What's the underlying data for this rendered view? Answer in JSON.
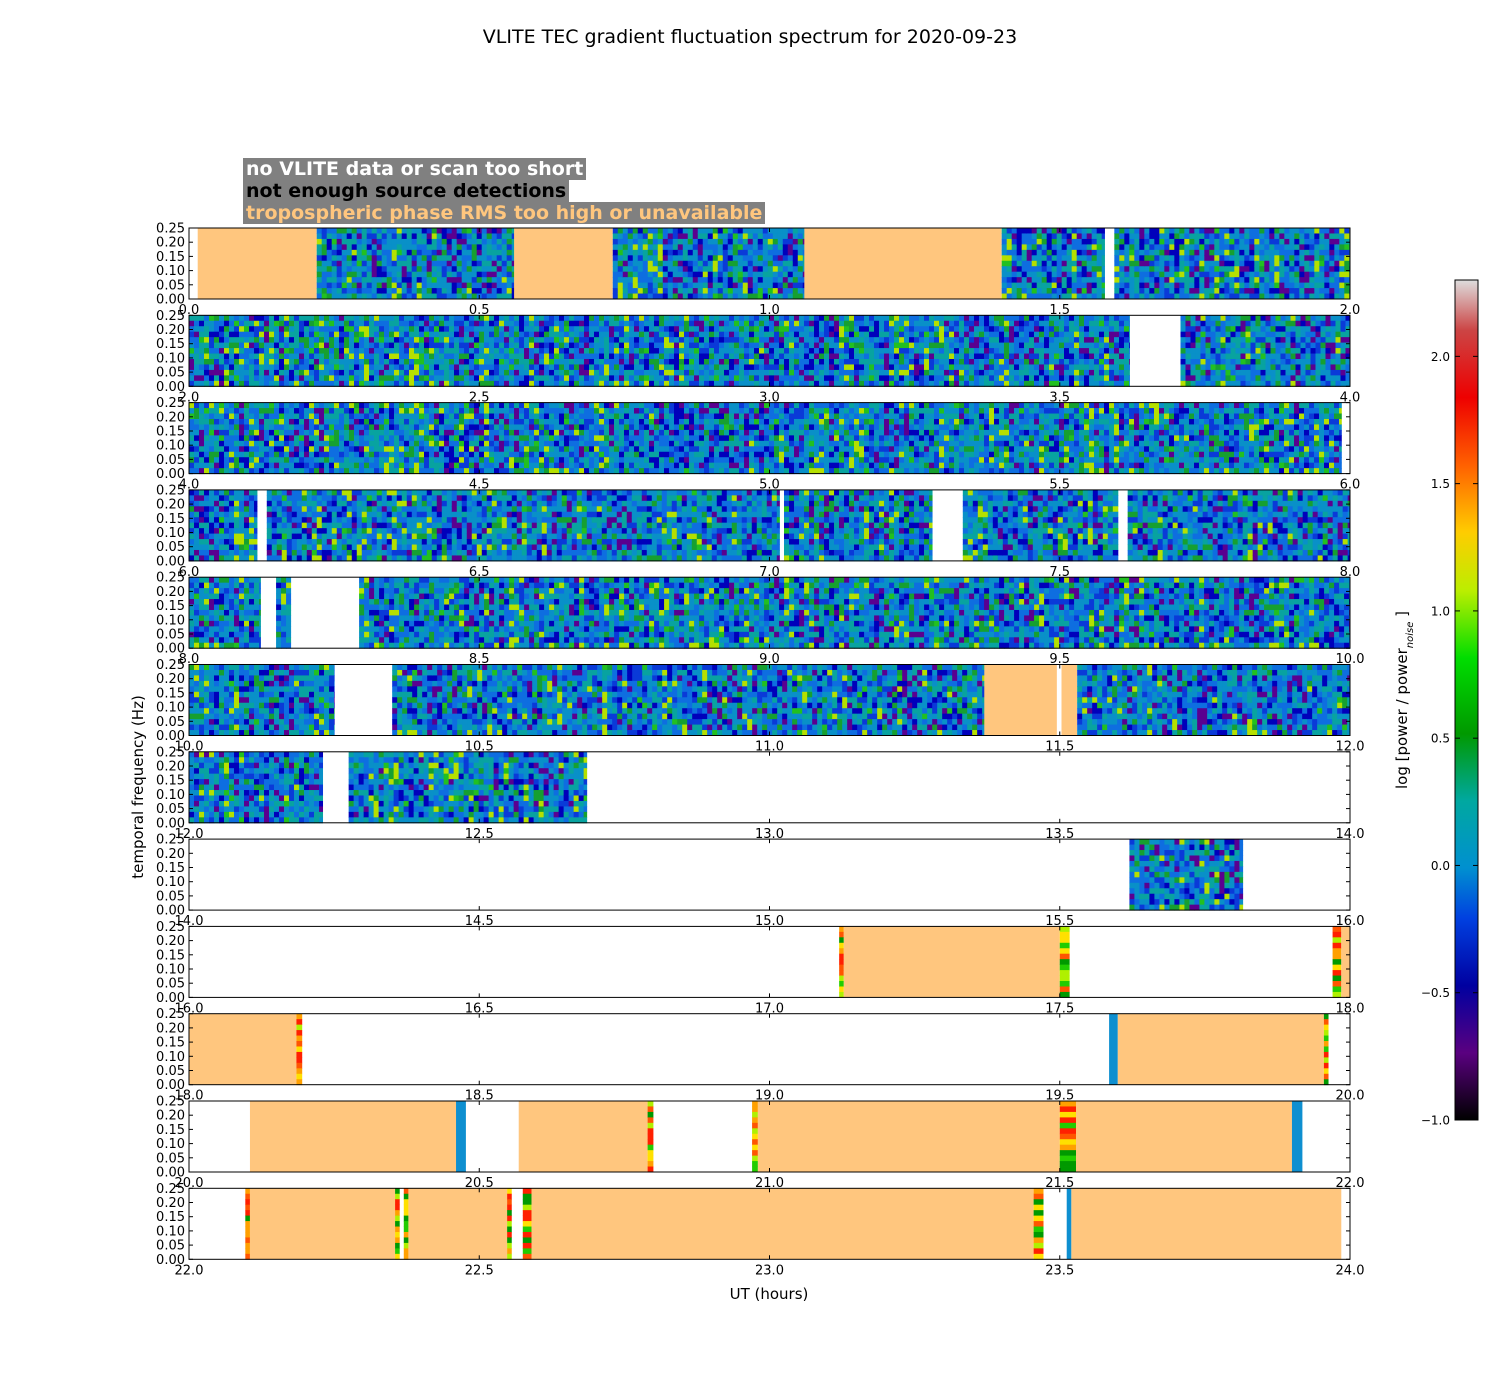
{
  "chart_data": {
    "type": "heatmap",
    "title": "VLITE TEC gradient fluctuation spectrum for 2020-09-23",
    "xlabel": "UT (hours)",
    "ylabel": "temporal frequency (Hz)",
    "ylim": [
      0,
      0.25
    ],
    "yticks": [
      "0.00",
      "0.05",
      "0.10",
      "0.15",
      "0.20",
      "0.25"
    ],
    "colorbar": {
      "label_prefix": "log [power / power",
      "label_sub": "noise",
      "label_suffix": "]",
      "ticks": [
        "−1.0",
        "−0.5",
        "0.0",
        "0.5",
        "1.0",
        "1.5",
        "2.0"
      ],
      "range": [
        -1.0,
        2.3
      ]
    },
    "legend": {
      "no_data": "no VLITE data or scan too short",
      "no_detections": "not enough source detections",
      "trop_rms": "tropospheric phase RMS too high or unavailable"
    },
    "colors": {
      "no_data": "#ffffff",
      "no_detections": "#000000",
      "trop_rms": "#ffc67e",
      "legend_bg": "#808080"
    },
    "rows": [
      {
        "xlim": [
          0.0,
          2.0
        ],
        "ticks": [
          "0.0",
          "0.5",
          "1.0",
          "1.5",
          "2.0"
        ],
        "segments": [
          {
            "start": 0.0,
            "end": 0.015,
            "kind": "none"
          },
          {
            "start": 0.015,
            "end": 0.22,
            "kind": "trop"
          },
          {
            "start": 0.22,
            "end": 0.56,
            "kind": "data"
          },
          {
            "start": 0.56,
            "end": 0.73,
            "kind": "trop"
          },
          {
            "start": 0.73,
            "end": 1.06,
            "kind": "data"
          },
          {
            "start": 1.06,
            "end": 1.4,
            "kind": "trop"
          },
          {
            "start": 1.4,
            "end": 1.577,
            "kind": "data"
          },
          {
            "start": 1.577,
            "end": 1.594,
            "kind": "none"
          },
          {
            "start": 1.594,
            "end": 2.0,
            "kind": "data"
          }
        ]
      },
      {
        "xlim": [
          2.0,
          4.0
        ],
        "ticks": [
          "2.0",
          "2.5",
          "3.0",
          "3.5",
          "4.0"
        ],
        "segments": [
          {
            "start": 2.0,
            "end": 3.62,
            "kind": "data"
          },
          {
            "start": 3.62,
            "end": 3.708,
            "kind": "none"
          },
          {
            "start": 3.708,
            "end": 4.0,
            "kind": "data"
          }
        ]
      },
      {
        "xlim": [
          4.0,
          6.0
        ],
        "ticks": [
          "4.0",
          "4.5",
          "5.0",
          "5.5",
          "6.0"
        ],
        "segments": [
          {
            "start": 4.0,
            "end": 5.985,
            "kind": "data"
          },
          {
            "start": 5.985,
            "end": 6.0,
            "kind": "none"
          }
        ]
      },
      {
        "xlim": [
          6.0,
          8.0
        ],
        "ticks": [
          "6.0",
          "6.5",
          "7.0",
          "7.5",
          "8.0"
        ],
        "segments": [
          {
            "start": 6.0,
            "end": 6.117,
            "kind": "data"
          },
          {
            "start": 6.117,
            "end": 6.134,
            "kind": "none"
          },
          {
            "start": 6.134,
            "end": 7.017,
            "kind": "data"
          },
          {
            "start": 7.017,
            "end": 7.025,
            "kind": "none"
          },
          {
            "start": 7.025,
            "end": 7.28,
            "kind": "data"
          },
          {
            "start": 7.28,
            "end": 7.333,
            "kind": "none"
          },
          {
            "start": 7.333,
            "end": 7.6,
            "kind": "data"
          },
          {
            "start": 7.6,
            "end": 7.617,
            "kind": "none"
          },
          {
            "start": 7.617,
            "end": 8.0,
            "kind": "data"
          }
        ]
      },
      {
        "xlim": [
          8.0,
          10.0
        ],
        "ticks": [
          "8.0",
          "8.5",
          "9.0",
          "9.5",
          "10.0"
        ],
        "segments": [
          {
            "start": 8.0,
            "end": 8.123,
            "kind": "data"
          },
          {
            "start": 8.123,
            "end": 8.15,
            "kind": "none"
          },
          {
            "start": 8.15,
            "end": 8.175,
            "kind": "data"
          },
          {
            "start": 8.175,
            "end": 8.293,
            "kind": "none"
          },
          {
            "start": 8.293,
            "end": 10.0,
            "kind": "data"
          }
        ]
      },
      {
        "xlim": [
          10.0,
          12.0
        ],
        "ticks": [
          "10.0",
          "10.5",
          "11.0",
          "11.5",
          "12.0"
        ],
        "segments": [
          {
            "start": 10.0,
            "end": 10.25,
            "kind": "data"
          },
          {
            "start": 10.25,
            "end": 10.35,
            "kind": "none"
          },
          {
            "start": 10.35,
            "end": 11.37,
            "kind": "data"
          },
          {
            "start": 11.37,
            "end": 11.495,
            "kind": "trop"
          },
          {
            "start": 11.495,
            "end": 11.503,
            "kind": "none"
          },
          {
            "start": 11.503,
            "end": 11.53,
            "kind": "trop"
          },
          {
            "start": 11.53,
            "end": 12.0,
            "kind": "data"
          }
        ]
      },
      {
        "xlim": [
          12.0,
          14.0
        ],
        "ticks": [
          "12.0",
          "12.5",
          "13.0",
          "13.5",
          "14.0"
        ],
        "segments": [
          {
            "start": 12.0,
            "end": 12.23,
            "kind": "data"
          },
          {
            "start": 12.23,
            "end": 12.275,
            "kind": "none"
          },
          {
            "start": 12.275,
            "end": 12.685,
            "kind": "data"
          },
          {
            "start": 12.685,
            "end": 14.0,
            "kind": "none"
          }
        ]
      },
      {
        "xlim": [
          14.0,
          16.0
        ],
        "ticks": [
          "14.0",
          "14.5",
          "15.0",
          "15.5",
          "16.0"
        ],
        "segments": [
          {
            "start": 14.0,
            "end": 15.62,
            "kind": "none"
          },
          {
            "start": 15.62,
            "end": 15.815,
            "kind": "data"
          },
          {
            "start": 15.815,
            "end": 16.0,
            "kind": "none"
          }
        ]
      },
      {
        "xlim": [
          16.0,
          18.0
        ],
        "ticks": [
          "16.0",
          "16.5",
          "17.0",
          "17.5",
          "18.0"
        ],
        "segments": [
          {
            "start": 16.0,
            "end": 17.12,
            "kind": "none"
          },
          {
            "start": 17.12,
            "end": 17.128,
            "kind": "stripe"
          },
          {
            "start": 17.128,
            "end": 17.5,
            "kind": "trop"
          },
          {
            "start": 17.5,
            "end": 17.517,
            "kind": "stripe"
          },
          {
            "start": 17.517,
            "end": 17.97,
            "kind": "none"
          },
          {
            "start": 17.97,
            "end": 17.985,
            "kind": "stripe"
          },
          {
            "start": 17.985,
            "end": 18.0,
            "kind": "trop"
          }
        ]
      },
      {
        "xlim": [
          18.0,
          20.0
        ],
        "ticks": [
          "18.0",
          "18.5",
          "19.0",
          "19.5",
          "20.0"
        ],
        "segments": [
          {
            "start": 18.0,
            "end": 18.185,
            "kind": "trop"
          },
          {
            "start": 18.185,
            "end": 18.195,
            "kind": "stripe"
          },
          {
            "start": 18.195,
            "end": 19.585,
            "kind": "none"
          },
          {
            "start": 19.585,
            "end": 19.6,
            "kind": "blue"
          },
          {
            "start": 19.6,
            "end": 19.955,
            "kind": "trop"
          },
          {
            "start": 19.955,
            "end": 19.963,
            "kind": "stripe"
          },
          {
            "start": 19.963,
            "end": 20.0,
            "kind": "none"
          }
        ]
      },
      {
        "xlim": [
          20.0,
          22.0
        ],
        "ticks": [
          "20.0",
          "20.5",
          "21.0",
          "21.5",
          "22.0"
        ],
        "segments": [
          {
            "start": 20.0,
            "end": 20.105,
            "kind": "none"
          },
          {
            "start": 20.105,
            "end": 20.46,
            "kind": "trop"
          },
          {
            "start": 20.46,
            "end": 20.477,
            "kind": "blue"
          },
          {
            "start": 20.477,
            "end": 20.568,
            "kind": "none"
          },
          {
            "start": 20.568,
            "end": 20.79,
            "kind": "trop"
          },
          {
            "start": 20.79,
            "end": 20.8,
            "kind": "stripe"
          },
          {
            "start": 20.8,
            "end": 20.97,
            "kind": "none"
          },
          {
            "start": 20.97,
            "end": 20.98,
            "kind": "stripe"
          },
          {
            "start": 20.98,
            "end": 21.5,
            "kind": "trop"
          },
          {
            "start": 21.5,
            "end": 21.528,
            "kind": "stripe"
          },
          {
            "start": 21.528,
            "end": 21.9,
            "kind": "trop"
          },
          {
            "start": 21.9,
            "end": 21.918,
            "kind": "blue"
          },
          {
            "start": 21.918,
            "end": 22.0,
            "kind": "none"
          }
        ]
      },
      {
        "xlim": [
          22.0,
          24.0
        ],
        "ticks": [
          "22.0",
          "22.5",
          "23.0",
          "23.5",
          "24.0"
        ],
        "segments": [
          {
            "start": 22.0,
            "end": 22.097,
            "kind": "none"
          },
          {
            "start": 22.097,
            "end": 22.105,
            "kind": "stripe"
          },
          {
            "start": 22.105,
            "end": 22.355,
            "kind": "trop"
          },
          {
            "start": 22.355,
            "end": 22.363,
            "kind": "stripe"
          },
          {
            "start": 22.363,
            "end": 22.37,
            "kind": "none"
          },
          {
            "start": 22.37,
            "end": 22.378,
            "kind": "stripe"
          },
          {
            "start": 22.378,
            "end": 22.548,
            "kind": "trop"
          },
          {
            "start": 22.548,
            "end": 22.556,
            "kind": "stripe"
          },
          {
            "start": 22.556,
            "end": 22.575,
            "kind": "none"
          },
          {
            "start": 22.575,
            "end": 22.59,
            "kind": "stripe"
          },
          {
            "start": 22.59,
            "end": 23.455,
            "kind": "trop"
          },
          {
            "start": 23.455,
            "end": 23.472,
            "kind": "stripe"
          },
          {
            "start": 23.472,
            "end": 23.512,
            "kind": "none"
          },
          {
            "start": 23.512,
            "end": 23.52,
            "kind": "blue"
          },
          {
            "start": 23.52,
            "end": 23.985,
            "kind": "trop"
          },
          {
            "start": 23.985,
            "end": 24.0,
            "kind": "none"
          }
        ]
      }
    ]
  }
}
